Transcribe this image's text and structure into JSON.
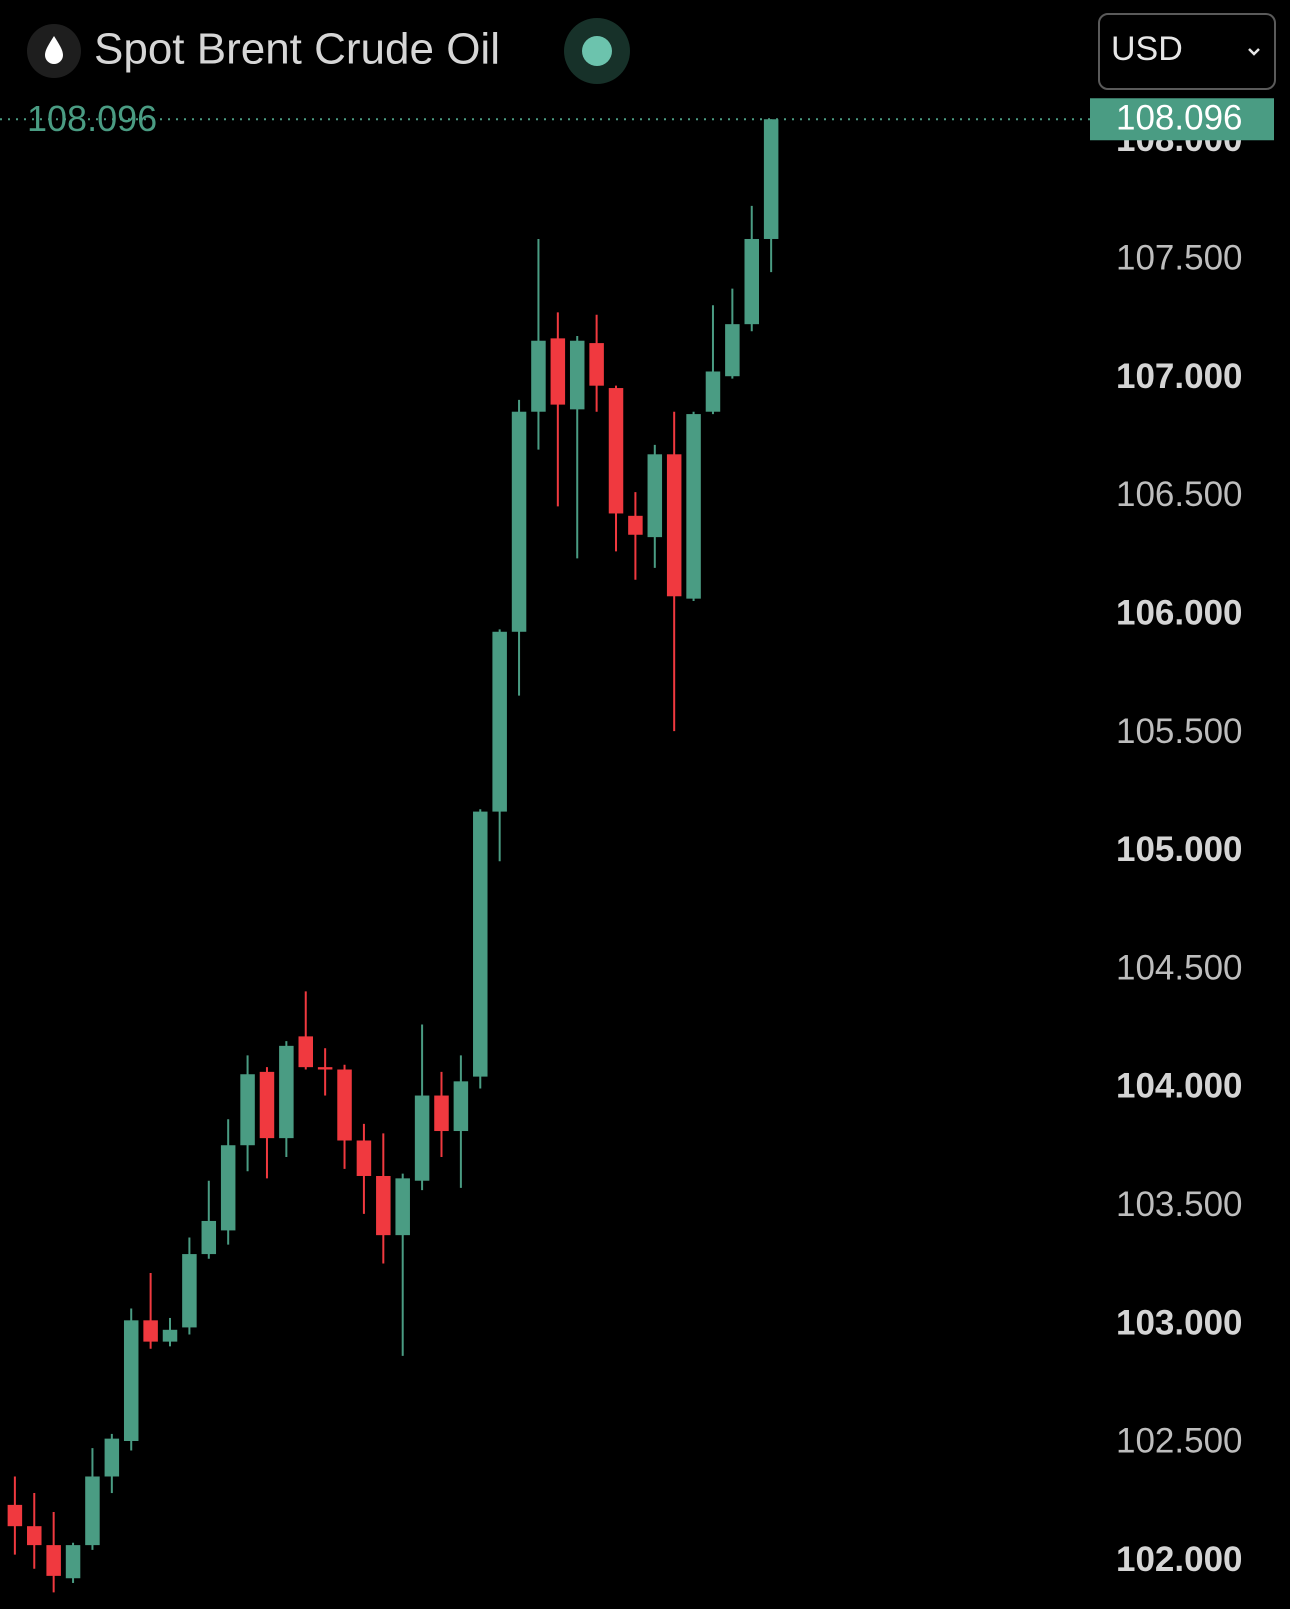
{
  "chart_data": {
    "type": "candlestick",
    "title": "Spot Brent Crude Oil",
    "currency": "USD",
    "open": [
      102.24,
      102.15,
      102.07,
      101.93,
      102.07,
      102.36,
      102.51,
      103.02,
      102.93,
      102.99,
      103.3,
      103.4,
      103.76,
      104.07,
      103.79,
      104.22,
      104.09,
      104.08,
      103.78,
      103.63,
      103.38,
      103.61,
      103.97,
      103.82,
      104.05,
      105.17,
      105.93,
      106.86,
      107.17,
      106.87,
      107.15,
      106.96,
      106.42,
      106.33,
      106.68,
      106.07,
      106.86,
      107.01,
      107.23,
      107.59
    ],
    "high": [
      102.36,
      102.29,
      102.21,
      102.08,
      102.48,
      102.54,
      103.07,
      103.22,
      103.03,
      103.37,
      103.61,
      103.87,
      104.14,
      104.09,
      104.2,
      104.41,
      104.17,
      104.1,
      103.85,
      103.81,
      103.64,
      104.27,
      104.07,
      104.14,
      105.18,
      105.94,
      106.91,
      107.59,
      107.28,
      107.18,
      107.27,
      106.97,
      106.52,
      106.72,
      106.86,
      106.86,
      107.31,
      107.38,
      107.73,
      108.096
    ],
    "low": [
      102.03,
      101.97,
      101.87,
      101.91,
      102.05,
      102.29,
      102.47,
      102.9,
      102.91,
      102.96,
      103.28,
      103.34,
      103.65,
      103.62,
      103.71,
      104.08,
      103.97,
      103.66,
      103.47,
      103.26,
      102.87,
      103.57,
      103.71,
      103.58,
      104.0,
      104.96,
      105.66,
      106.7,
      106.46,
      106.24,
      106.86,
      106.27,
      106.15,
      106.2,
      105.51,
      106.06,
      106.85,
      107.0,
      107.2,
      107.45
    ],
    "close": [
      102.15,
      102.07,
      101.94,
      102.07,
      102.36,
      102.52,
      103.02,
      102.93,
      102.98,
      103.3,
      103.44,
      103.76,
      104.06,
      103.79,
      104.18,
      104.09,
      104.08,
      103.78,
      103.63,
      103.38,
      103.62,
      103.97,
      103.82,
      104.03,
      105.17,
      105.93,
      106.86,
      107.16,
      106.89,
      107.16,
      106.97,
      106.43,
      106.34,
      106.68,
      106.08,
      106.85,
      107.03,
      107.23,
      107.59,
      108.096
    ],
    "up_color": "#4a9c83",
    "down_color": "#f0393f",
    "ylim": [
      101.8,
      108.6
    ],
    "yticks": [
      {
        "value": 102,
        "label": "102.000"
      },
      {
        "value": 102.5,
        "label": "102.500"
      },
      {
        "value": 103,
        "label": "103.000"
      },
      {
        "value": 103.5,
        "label": "103.500"
      },
      {
        "value": 104,
        "label": "104.000"
      },
      {
        "value": 104.5,
        "label": "104.500"
      },
      {
        "value": 105,
        "label": "105.000"
      },
      {
        "value": 105.5,
        "label": "105.500"
      },
      {
        "value": 106,
        "label": "106.000"
      },
      {
        "value": 106.5,
        "label": "106.500"
      },
      {
        "value": 107,
        "label": "107.000"
      },
      {
        "value": 107.5,
        "label": "107.500"
      },
      {
        "value": 108,
        "label": "108.000"
      }
    ],
    "grid": false
  }
}
